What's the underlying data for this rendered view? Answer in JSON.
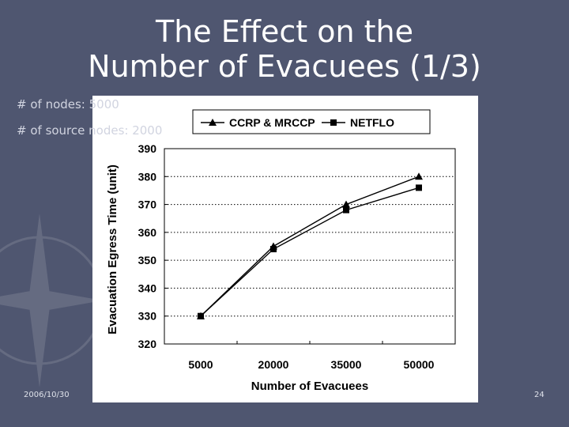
{
  "slide": {
    "title_line1": "The Effect on the",
    "title_line2": "Number of Evacuees (1/3)",
    "note_nodes": "# of nodes: 5000",
    "note_source": "# of source nodes: 2000",
    "footer_date": "2006/10/30",
    "footer_page": "24"
  },
  "chart_data": {
    "type": "line",
    "x": [
      5000,
      20000,
      35000,
      50000
    ],
    "xlabel": "Number of Evacuees",
    "ylabel": "Evacuation Egress Time (unit)",
    "ylim": [
      320,
      390
    ],
    "yticks": [
      320,
      330,
      340,
      350,
      360,
      370,
      380,
      390
    ],
    "grid": true,
    "legend": "top",
    "series": [
      {
        "name": "CCRP & MRCCP",
        "marker": "triangle",
        "values": [
          330,
          355,
          370,
          380
        ]
      },
      {
        "name": "NETFLO",
        "marker": "square",
        "values": [
          330,
          354,
          368,
          376
        ]
      }
    ],
    "colors": {
      "line": "#000000",
      "grid": "#000000",
      "panel": "#ffffff",
      "background": "#4f5670"
    }
  }
}
